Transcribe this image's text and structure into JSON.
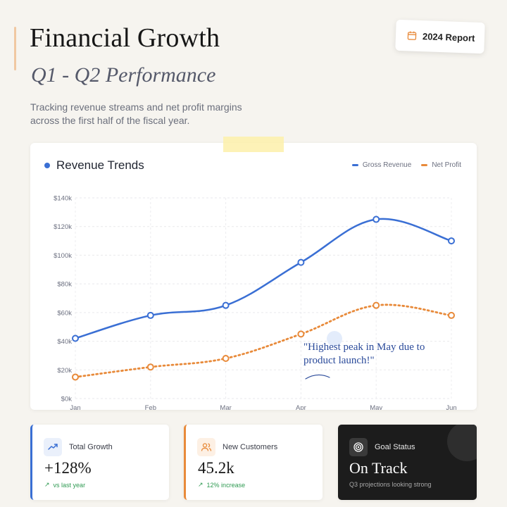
{
  "header": {
    "title": "Financial Growth",
    "subtitle": "Q1 - Q2 Performance",
    "description": "Tracking revenue streams and net profit margins across the first half of the fiscal year."
  },
  "report_badge": {
    "label": "2024 Report",
    "icon": "calendar-icon"
  },
  "colors": {
    "accent": "#3a6fd4",
    "secondary": "#e88a3a",
    "success": "#2f9a52",
    "dark": "#1c1c1c"
  },
  "chart_data": {
    "type": "line",
    "title": "Revenue Trends",
    "xlabel": "",
    "ylabel": "",
    "categories": [
      "Jan",
      "Feb",
      "Mar",
      "Apr",
      "May",
      "Jun"
    ],
    "series": [
      {
        "name": "Gross Revenue",
        "values": [
          42000,
          58000,
          65000,
          95000,
          125000,
          110000
        ],
        "color": "#3a6fd4",
        "style": "solid"
      },
      {
        "name": "Net Profit",
        "values": [
          15000,
          22000,
          28000,
          45000,
          65000,
          58000
        ],
        "color": "#e88a3a",
        "style": "dotted"
      }
    ],
    "ylim": [
      0,
      140000
    ],
    "y_ticks": [
      "$0k",
      "$20k",
      "$40k",
      "$60k",
      "$80k",
      "$100k",
      "$120k",
      "$140k"
    ],
    "grid": true,
    "legend_position": "top-right",
    "annotation": {
      "text": "\"Highest peak in May due to product launch!\"",
      "line1": "\"Highest peak in May due to",
      "line2": "product launch!\""
    }
  },
  "stats": [
    {
      "label": "Total Growth",
      "value": "+128%",
      "note": "vs last year",
      "icon": "trending-up-icon"
    },
    {
      "label": "New Customers",
      "value": "45.2k",
      "note": "12% increase",
      "icon": "users-icon"
    },
    {
      "label": "Goal Status",
      "value": "On Track",
      "note": "Q3 projections looking strong",
      "icon": "target-icon"
    }
  ]
}
